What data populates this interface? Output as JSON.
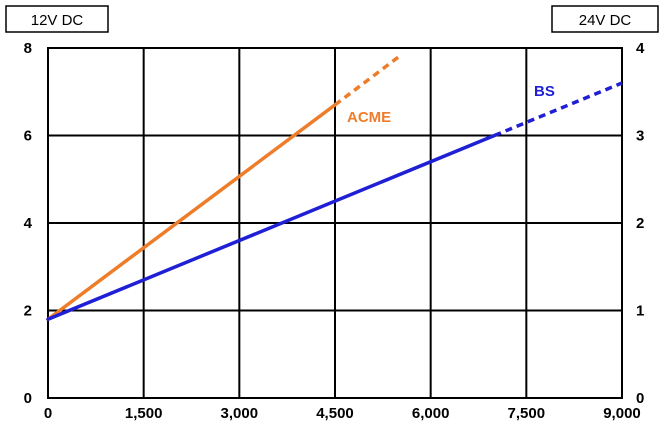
{
  "chart_data": {
    "type": "line",
    "x_ticks": [
      "0",
      "1,500",
      "3,000",
      "4,500",
      "6,000",
      "7,500",
      "9,000"
    ],
    "xlim": [
      0,
      9000
    ],
    "left_axis": {
      "unit_label": "12V DC",
      "ylim": [
        0,
        8
      ],
      "ticks": [
        "0",
        "2",
        "4",
        "6",
        "8"
      ]
    },
    "right_axis": {
      "unit_label": "24V DC",
      "ylim": [
        0,
        4
      ],
      "ticks": [
        "0",
        "1",
        "2",
        "3",
        "4"
      ]
    },
    "grid": true,
    "series": [
      {
        "name": "ACME",
        "color": "#ee7d2b",
        "solid": [
          [
            0,
            1.8
          ],
          [
            4500,
            6.7
          ]
        ],
        "dashed": [
          [
            4500,
            6.7
          ],
          [
            5500,
            7.8
          ]
        ]
      },
      {
        "name": "BS",
        "color": "#1f1fd6",
        "solid": [
          [
            0,
            1.8
          ],
          [
            7000,
            6.0
          ]
        ],
        "dashed": [
          [
            7000,
            6.0
          ],
          [
            9000,
            7.2
          ]
        ]
      }
    ]
  }
}
